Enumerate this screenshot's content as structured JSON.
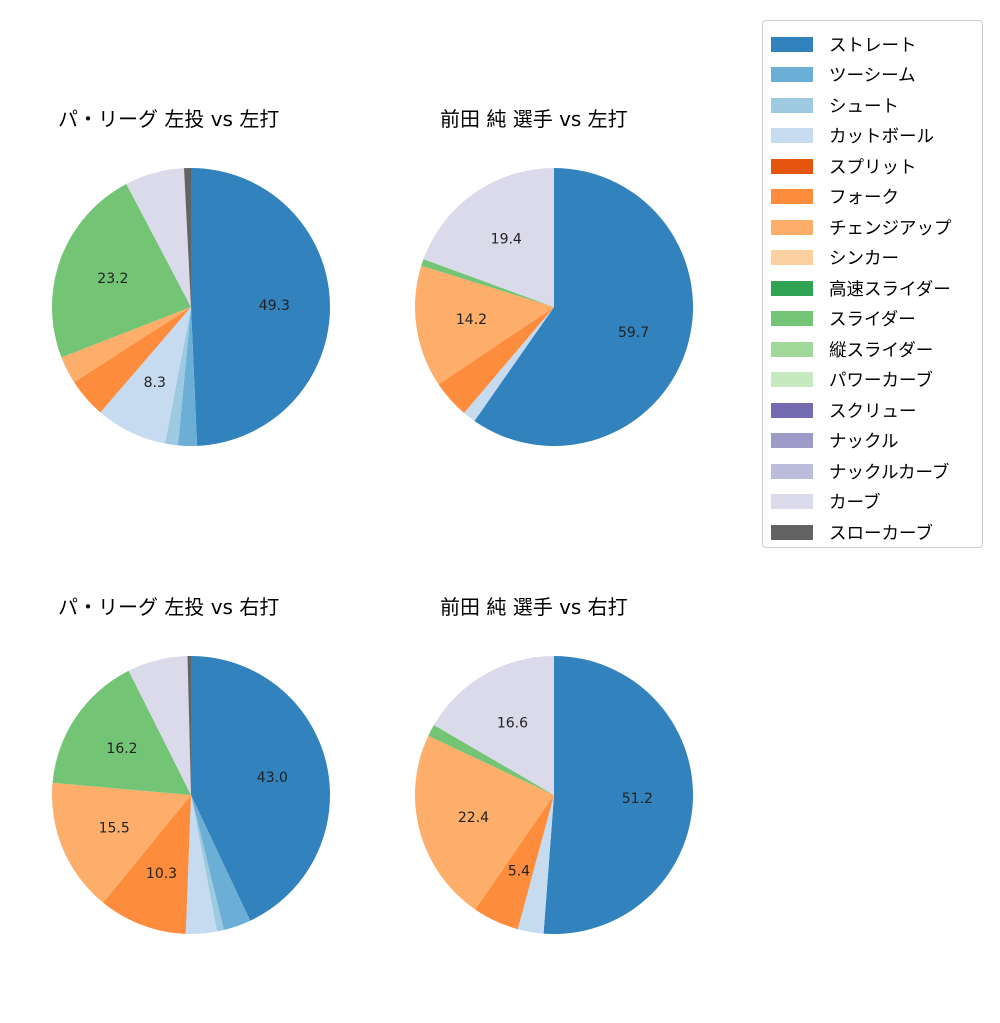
{
  "legend": {
    "items": [
      {
        "label": "ストレート",
        "color": "#3182bd"
      },
      {
        "label": "ツーシーム",
        "color": "#6baed6"
      },
      {
        "label": "シュート",
        "color": "#9ecae1"
      },
      {
        "label": "カットボール",
        "color": "#c6dbef"
      },
      {
        "label": "スプリット",
        "color": "#e6550d"
      },
      {
        "label": "フォーク",
        "color": "#fd8d3c"
      },
      {
        "label": "チェンジアップ",
        "color": "#fdae6b"
      },
      {
        "label": "シンカー",
        "color": "#fdd0a2"
      },
      {
        "label": "高速スライダー",
        "color": "#31a354"
      },
      {
        "label": "スライダー",
        "color": "#74c476"
      },
      {
        "label": "縦スライダー",
        "color": "#a1d99b"
      },
      {
        "label": "パワーカーブ",
        "color": "#c7e9c0"
      },
      {
        "label": "スクリュー",
        "color": "#756bb1"
      },
      {
        "label": "ナックル",
        "color": "#9e9ac8"
      },
      {
        "label": "ナックルカーブ",
        "color": "#bcbddc"
      },
      {
        "label": "カーブ",
        "color": "#dadaeb"
      },
      {
        "label": "スローカーブ",
        "color": "#636363"
      }
    ]
  },
  "chart_data": [
    {
      "type": "pie",
      "title": "パ・リーグ 左投 vs 左打",
      "start_angle": 90,
      "direction": "clockwise",
      "categories": [
        "ストレート",
        "ツーシーム",
        "シュート",
        "カットボール",
        "フォーク",
        "チェンジアップ",
        "スライダー",
        "カーブ",
        "スローカーブ"
      ],
      "values": [
        49.3,
        2.2,
        1.5,
        8.3,
        4.6,
        3.2,
        23.2,
        6.9,
        0.8
      ],
      "labels_shown": [
        "49.3",
        "",
        "",
        "8.3",
        "",
        "",
        "23.2",
        "",
        ""
      ]
    },
    {
      "type": "pie",
      "title": "前田 純 選手 vs 左打",
      "start_angle": 90,
      "direction": "clockwise",
      "categories": [
        "ストレート",
        "カットボール",
        "フォーク",
        "チェンジアップ",
        "スライダー",
        "カーブ"
      ],
      "values": [
        59.7,
        1.5,
        4.4,
        14.2,
        0.8,
        19.4
      ],
      "labels_shown": [
        "59.7",
        "",
        "",
        "14.2",
        "",
        "19.4"
      ]
    },
    {
      "type": "pie",
      "title": "パ・リーグ 左投 vs 右打",
      "start_angle": 90,
      "direction": "clockwise",
      "categories": [
        "ストレート",
        "ツーシーム",
        "シュート",
        "カットボール",
        "フォーク",
        "チェンジアップ",
        "スライダー",
        "カーブ",
        "スローカーブ"
      ],
      "values": [
        43.0,
        3.2,
        0.8,
        3.6,
        10.3,
        15.5,
        16.2,
        7.0,
        0.4
      ],
      "labels_shown": [
        "43.0",
        "",
        "",
        "",
        "10.3",
        "15.5",
        "16.2",
        "",
        ""
      ]
    },
    {
      "type": "pie",
      "title": "前田 純 選手 vs 右打",
      "start_angle": 90,
      "direction": "clockwise",
      "categories": [
        "ストレート",
        "カットボール",
        "フォーク",
        "チェンジアップ",
        "スライダー",
        "カーブ"
      ],
      "values": [
        51.2,
        3.0,
        5.4,
        22.4,
        1.4,
        16.6
      ],
      "labels_shown": [
        "51.2",
        "",
        "5.4",
        "22.4",
        "",
        "16.6"
      ]
    }
  ]
}
